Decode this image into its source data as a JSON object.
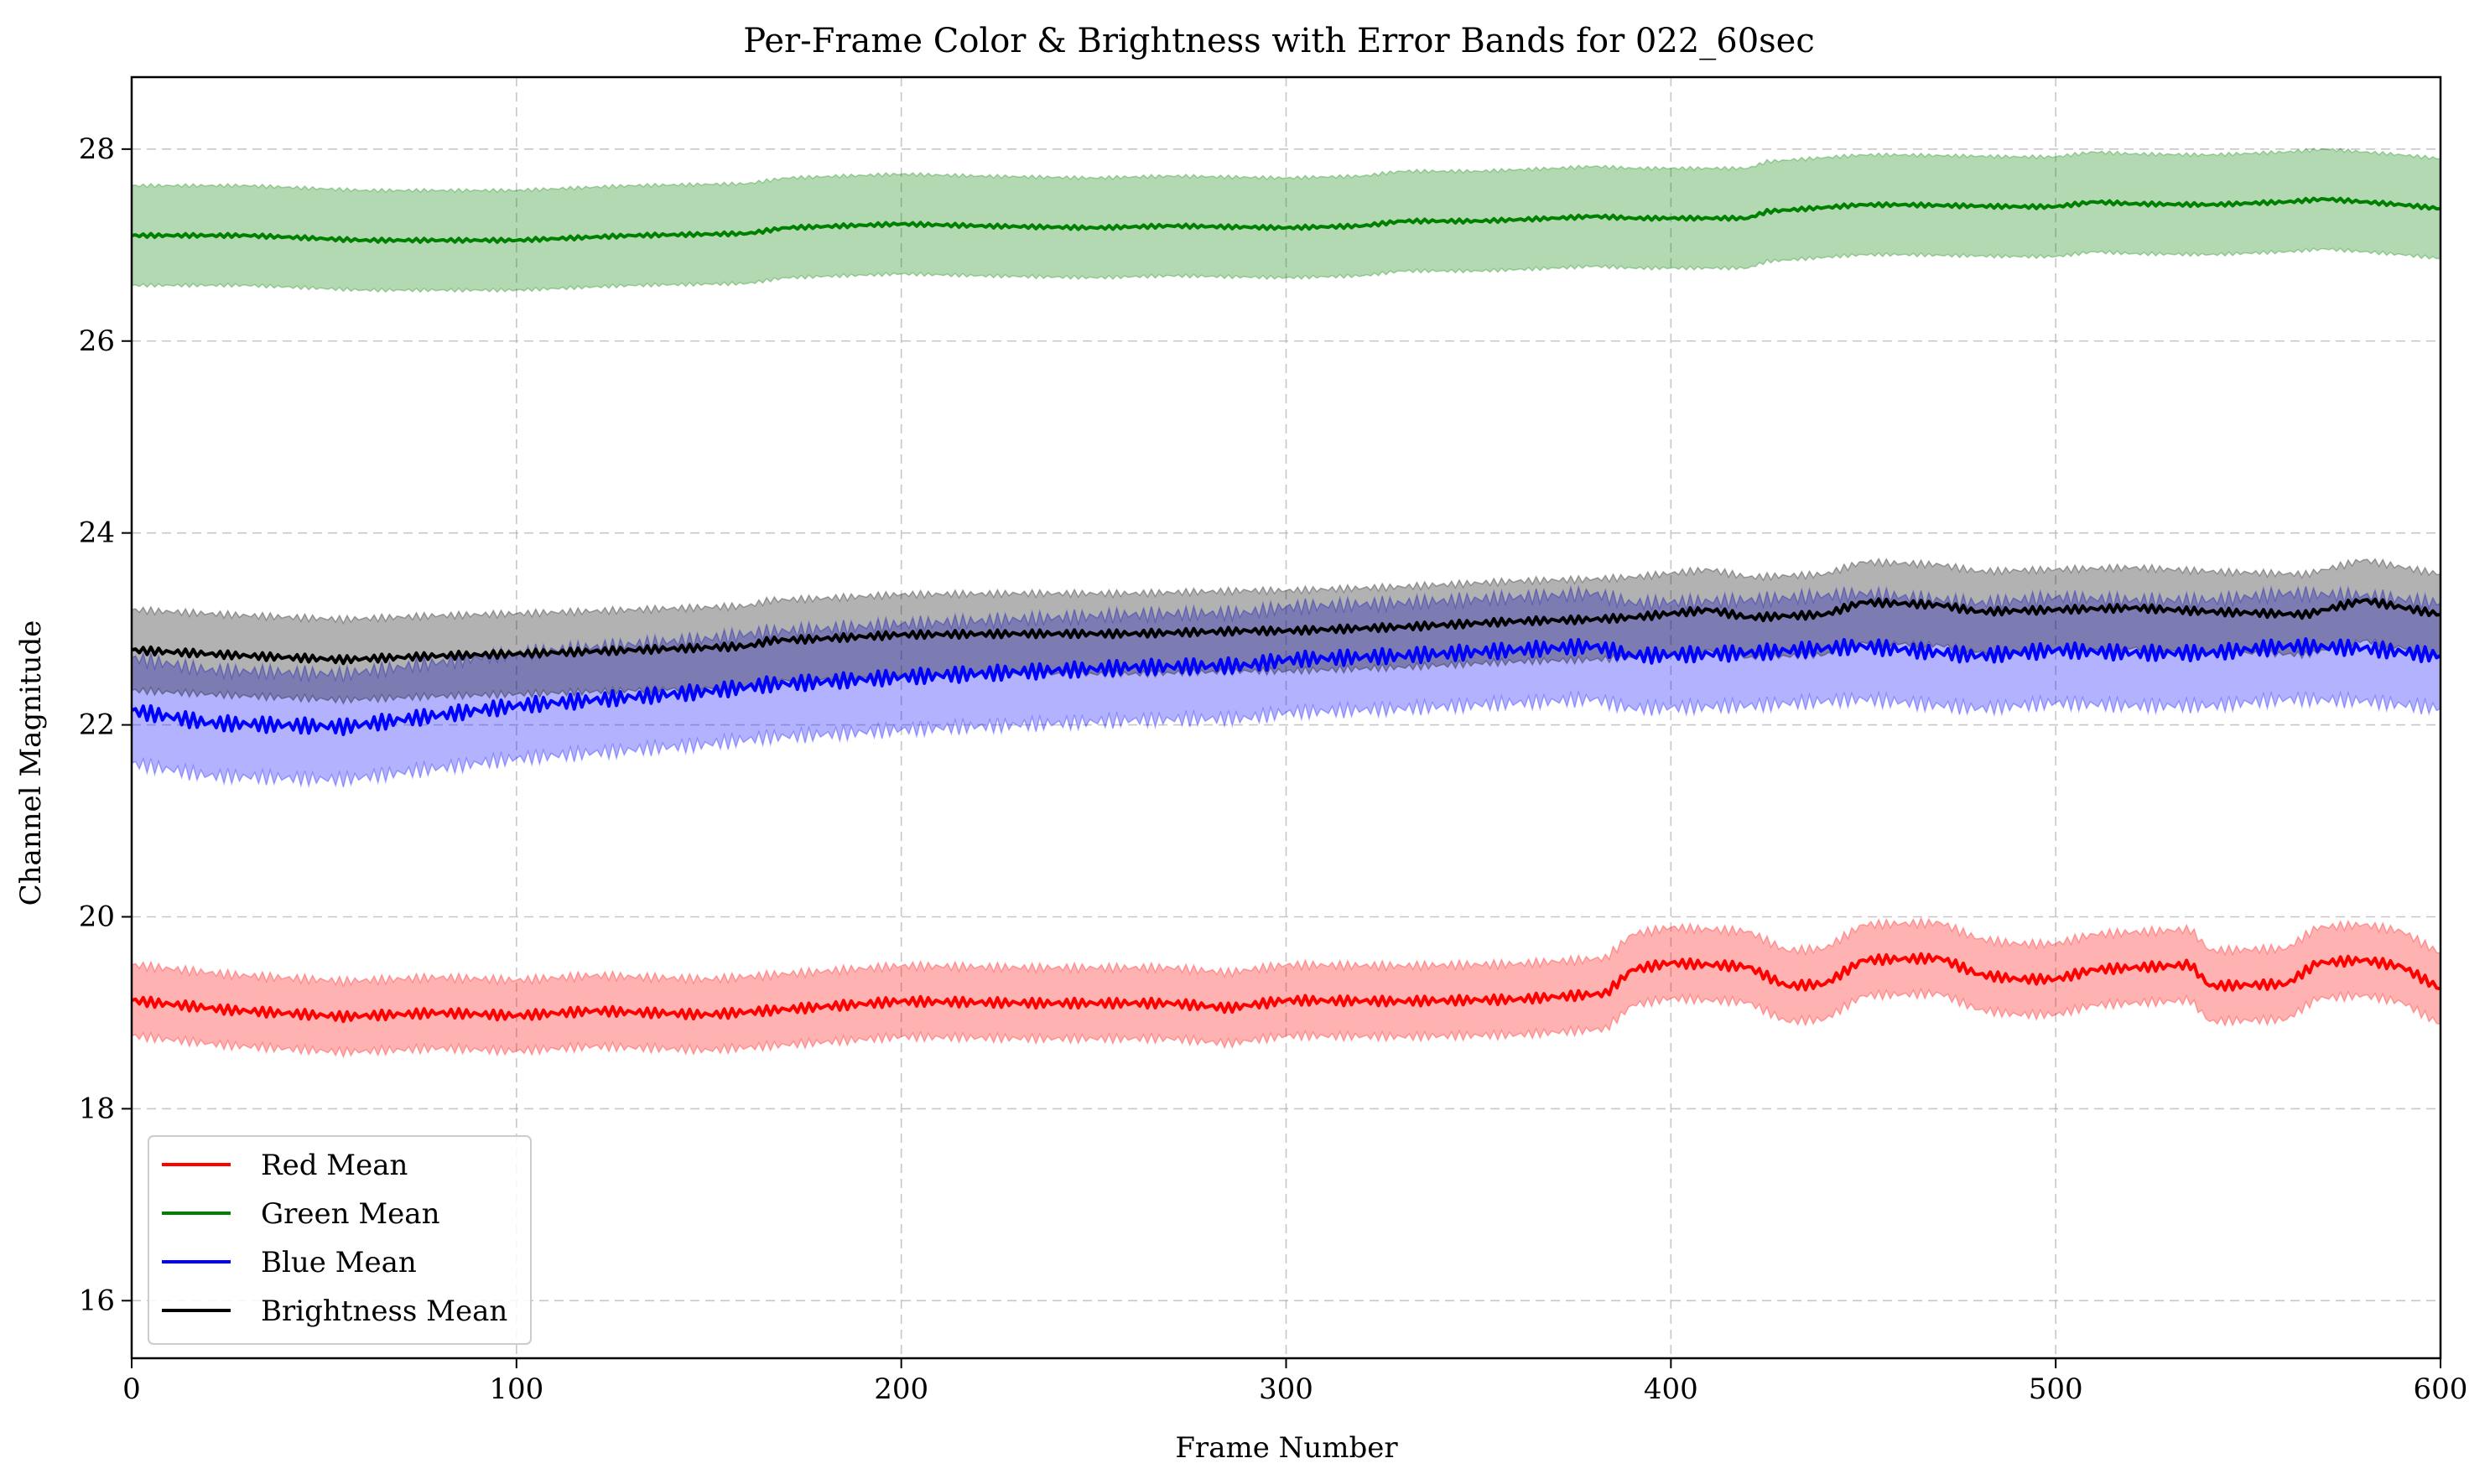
{
  "chart_data": {
    "type": "line",
    "title": "Per-Frame Color & Brightness with Error Bands for 022_60sec",
    "xlabel": "Frame Number",
    "ylabel": "Channel Magnitude",
    "xlim": [
      0,
      600
    ],
    "ylim": [
      15.4,
      28.75
    ],
    "xticks": [
      0,
      100,
      200,
      300,
      400,
      500,
      600
    ],
    "xtick_labels": [
      "0",
      "100",
      "200",
      "300",
      "400",
      "500",
      "600"
    ],
    "yticks": [
      16,
      18,
      20,
      22,
      24,
      26,
      28
    ],
    "ytick_labels": [
      "16",
      "18",
      "20",
      "22",
      "24",
      "26",
      "28"
    ],
    "grid": true,
    "legend_position": "lower-left",
    "series": [
      {
        "name": "Red Mean",
        "color": "#ff0000",
        "band_half_width": 0.37,
        "oscillation": 0.05,
        "x": [
          0,
          25,
          55,
          80,
          100,
          120,
          150,
          175,
          200,
          235,
          270,
          285,
          300,
          330,
          360,
          383,
          390,
          400,
          410,
          420,
          430,
          440,
          450,
          470,
          480,
          490,
          500,
          510,
          520,
          535,
          540,
          560,
          568,
          580,
          590,
          600
        ],
        "y": [
          19.13,
          19.03,
          18.96,
          19.0,
          18.97,
          19.02,
          18.98,
          19.05,
          19.12,
          19.1,
          19.1,
          19.05,
          19.13,
          19.12,
          19.14,
          19.2,
          19.45,
          19.52,
          19.5,
          19.48,
          19.28,
          19.3,
          19.55,
          19.57,
          19.4,
          19.35,
          19.35,
          19.45,
          19.47,
          19.5,
          19.28,
          19.3,
          19.52,
          19.55,
          19.48,
          19.25
        ]
      },
      {
        "name": "Green Mean",
        "color": "#008000",
        "band_half_width": 0.52,
        "oscillation": 0.02,
        "x": [
          0,
          30,
          60,
          100,
          130,
          160,
          170,
          200,
          220,
          250,
          270,
          300,
          320,
          330,
          350,
          370,
          380,
          390,
          420,
          425,
          450,
          460,
          490,
          500,
          510,
          520,
          540,
          560,
          570,
          590,
          600
        ],
        "y": [
          27.1,
          27.1,
          27.05,
          27.05,
          27.1,
          27.12,
          27.18,
          27.22,
          27.2,
          27.18,
          27.2,
          27.18,
          27.2,
          27.25,
          27.25,
          27.28,
          27.3,
          27.28,
          27.28,
          27.35,
          27.42,
          27.42,
          27.4,
          27.4,
          27.45,
          27.43,
          27.42,
          27.45,
          27.48,
          27.42,
          27.38
        ]
      },
      {
        "name": "Blue Mean",
        "color": "#0000ff",
        "band_half_width": 0.55,
        "oscillation": 0.08,
        "x": [
          0,
          20,
          55,
          100,
          150,
          165,
          180,
          200,
          230,
          260,
          290,
          300,
          330,
          360,
          380,
          390,
          420,
          450,
          480,
          500,
          520,
          540,
          560,
          580,
          600
        ],
        "y": [
          22.15,
          22.02,
          21.98,
          22.2,
          22.35,
          22.42,
          22.45,
          22.5,
          22.55,
          22.6,
          22.62,
          22.68,
          22.72,
          22.78,
          22.82,
          22.72,
          22.75,
          22.82,
          22.72,
          22.78,
          22.75,
          22.75,
          22.82,
          22.8,
          22.72
        ]
      },
      {
        "name": "Brightness Mean",
        "color": "#000000",
        "band_half_width": 0.42,
        "oscillation": 0.04,
        "x": [
          0,
          30,
          55,
          80,
          100,
          130,
          160,
          166,
          180,
          200,
          230,
          260,
          290,
          300,
          330,
          360,
          380,
          390,
          410,
          420,
          440,
          450,
          470,
          480,
          500,
          520,
          540,
          565,
          580,
          600
        ],
        "y": [
          22.78,
          22.72,
          22.68,
          22.72,
          22.74,
          22.78,
          22.82,
          22.88,
          22.9,
          22.94,
          22.95,
          22.95,
          22.98,
          22.98,
          23.02,
          23.08,
          23.1,
          23.12,
          23.2,
          23.12,
          23.15,
          23.28,
          23.25,
          23.18,
          23.2,
          23.22,
          23.18,
          23.15,
          23.3,
          23.15
        ]
      }
    ]
  }
}
